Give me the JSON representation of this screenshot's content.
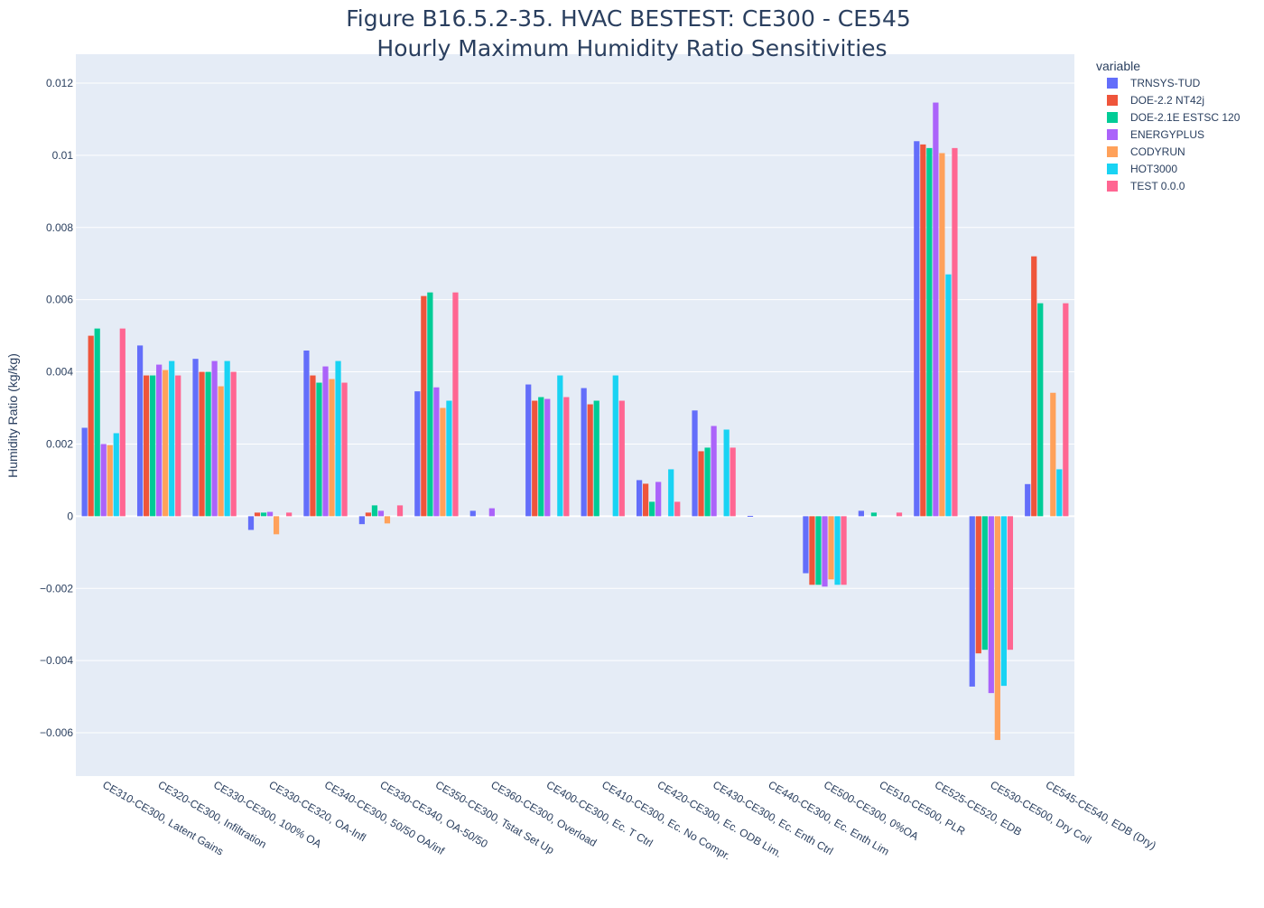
{
  "chart_data": {
    "type": "bar",
    "title": "Figure B16.5.2-35. HVAC BESTEST: CE300 - CE545",
    "subtitle": "Hourly Maximum Humidity Ratio Sensitivities",
    "xlabel": "",
    "ylabel": "Humidity Ratio (kg/kg)",
    "ylim": [
      -0.0072,
      0.0128
    ],
    "yticks": [
      -0.006,
      -0.004,
      -0.002,
      0,
      0.002,
      0.004,
      0.006,
      0.008,
      0.01,
      0.012
    ],
    "ytick_labels": [
      "−0.006",
      "−0.004",
      "−0.002",
      "0",
      "0.002",
      "0.004",
      "0.006",
      "0.008",
      "0.01",
      "0.012"
    ],
    "grid": true,
    "legend_title": "variable",
    "legend_position": "top-right",
    "categories": [
      "CE310-CE300, Latent Gains",
      "CE320-CE300, Infiltration",
      "CE330-CE300, 100% OA",
      "CE330-CE320, OA-Infl",
      "CE340-CE300, 50/50 OA/inf",
      "CE330-CE340, OA-50/50",
      "CE350-CE300, Tstat Set Up",
      "CE360-CE300, Overload",
      "CE400-CE300, Ec. T Ctrl",
      "CE410-CE300, Ec. No Compr.",
      "CE420-CE300, Ec. ODB Lim.",
      "CE430-CE300, Ec. Enth Ctrl",
      "CE440-CE300, Ec. Enth Lim",
      "CE500-CE300, 0%OA",
      "CE510-CE500, PLR",
      "CE525-CE520, EDB",
      "CE530-CE500, Dry Coil",
      "CE545-CE540, EDB (Dry)"
    ],
    "series": [
      {
        "name": "TRNSYS-TUD",
        "color": "#636efa",
        "values": [
          0.00245,
          0.00473,
          0.00436,
          -0.00038,
          0.00459,
          -0.00022,
          0.00346,
          0.00015,
          0.00365,
          0.00355,
          0.001,
          0.00293,
          1e-05,
          -0.00158,
          0.00015,
          0.01039,
          -0.00472,
          0.00089
        ]
      },
      {
        "name": "DOE-2.2 NT42j",
        "color": "#ef553b",
        "values": [
          0.005,
          0.0039,
          0.004,
          0.0001,
          0.0039,
          0.0001,
          0.0061,
          0.0,
          0.0032,
          0.0031,
          0.0009,
          0.0018,
          0.0,
          -0.0019,
          0.0,
          0.0103,
          -0.0038,
          0.0072
        ]
      },
      {
        "name": "DOE-2.1E ESTSC 120",
        "color": "#00cc96",
        "values": [
          0.0052,
          0.0039,
          0.004,
          0.0001,
          0.0037,
          0.0003,
          0.0062,
          0.0,
          0.0033,
          0.0032,
          0.0004,
          0.0019,
          0.0,
          -0.0019,
          0.0001,
          0.0102,
          -0.0037,
          0.0059
        ]
      },
      {
        "name": "ENERGYPLUS",
        "color": "#ab63fa",
        "values": [
          0.002,
          0.0042,
          0.0043,
          0.00012,
          0.00415,
          0.00015,
          0.00357,
          0.00022,
          0.00325,
          0.0,
          0.00095,
          0.0025,
          0.0,
          -0.00195,
          0.0,
          0.01146,
          -0.0049,
          0.0
        ]
      },
      {
        "name": "CODYRUN",
        "color": "#ffa15a",
        "values": [
          0.00197,
          0.00405,
          0.0036,
          -0.0005,
          0.0038,
          -0.0002,
          0.003,
          0.0,
          0.0,
          0.0,
          0.0,
          0.0,
          0.0,
          -0.00175,
          0.0,
          0.01006,
          -0.0062,
          0.00342
        ]
      },
      {
        "name": "HOT3000",
        "color": "#19d3f3",
        "values": [
          0.0023,
          0.0043,
          0.0043,
          0.0,
          0.0043,
          0.0,
          0.0032,
          0.0,
          0.0039,
          0.0039,
          0.0013,
          0.0024,
          0.0,
          -0.0019,
          0.0,
          0.0067,
          -0.0047,
          0.0013
        ]
      },
      {
        "name": "TEST 0.0.0",
        "color": "#ff6692",
        "values": [
          0.0052,
          0.0039,
          0.004,
          0.0001,
          0.0037,
          0.0003,
          0.0062,
          0.0,
          0.0033,
          0.0032,
          0.0004,
          0.0019,
          0.0,
          -0.0019,
          0.0001,
          0.0102,
          -0.0037,
          0.0059
        ]
      }
    ]
  },
  "colors": {
    "plot_background": "#e5ecf6",
    "gridline": "#ffffff",
    "text": "#2a3f5f"
  }
}
